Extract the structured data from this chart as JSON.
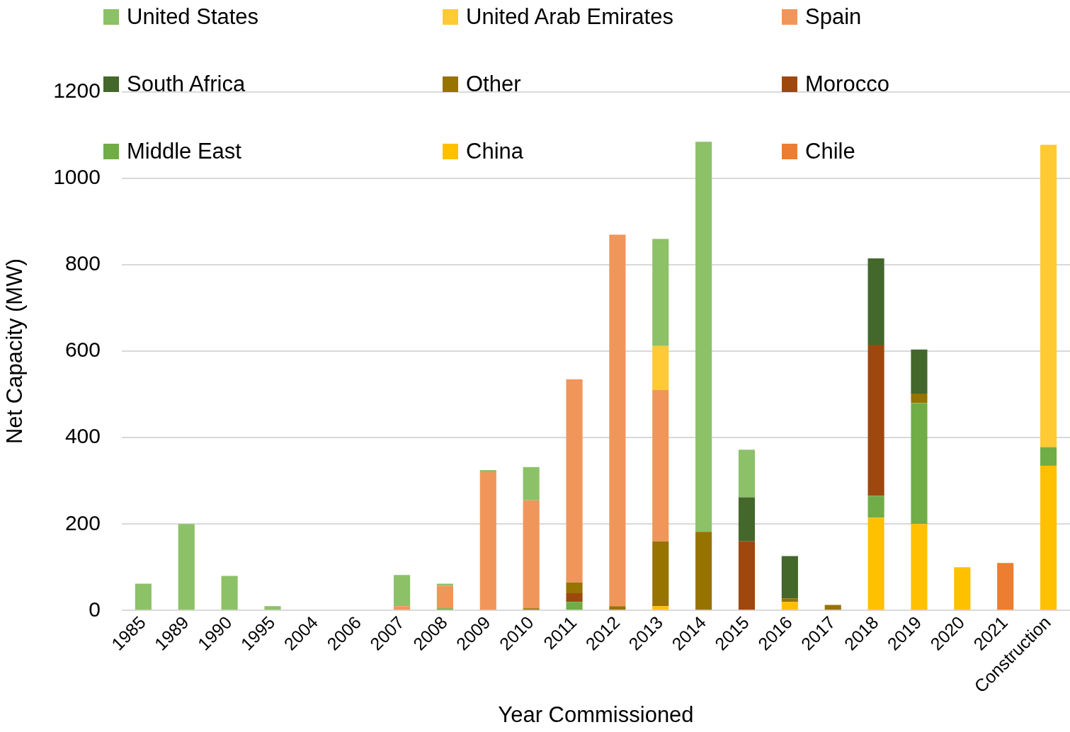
{
  "chart_data": {
    "type": "bar",
    "stacked": true,
    "xlabel": "Year Commissioned",
    "ylabel": "Net Capacity (MW)",
    "categories": [
      "1985",
      "1989",
      "1990",
      "1995",
      "2004",
      "2006",
      "2007",
      "2008",
      "2009",
      "2010",
      "2011",
      "2012",
      "2013",
      "2014",
      "2015",
      "2016",
      "2017",
      "2018",
      "2019",
      "2020",
      "2021",
      "Construction"
    ],
    "series": [
      {
        "name": "Chile",
        "color": "#ed7d31",
        "values": [
          null,
          null,
          null,
          null,
          null,
          null,
          null,
          null,
          null,
          null,
          null,
          null,
          null,
          null,
          null,
          null,
          null,
          null,
          null,
          null,
          110,
          null
        ]
      },
      {
        "name": "China",
        "color": "#ffc000",
        "values": [
          null,
          null,
          null,
          null,
          null,
          null,
          null,
          null,
          null,
          null,
          null,
          null,
          10,
          null,
          null,
          20,
          null,
          215,
          200,
          100,
          null,
          335
        ]
      },
      {
        "name": "Middle East",
        "color": "#70ad47",
        "values": [
          null,
          null,
          null,
          null,
          null,
          null,
          null,
          5,
          null,
          null,
          20,
          null,
          null,
          null,
          null,
          null,
          null,
          50,
          280,
          null,
          null,
          43
        ]
      },
      {
        "name": "Morocco",
        "color": "#9e480e",
        "values": [
          null,
          null,
          null,
          null,
          null,
          null,
          null,
          null,
          null,
          null,
          20,
          null,
          null,
          null,
          160,
          null,
          null,
          350,
          null,
          null,
          null,
          null
        ]
      },
      {
        "name": "Other",
        "color": "#977300",
        "values": [
          null,
          null,
          null,
          null,
          null,
          null,
          null,
          null,
          null,
          5,
          25,
          10,
          150,
          182,
          null,
          8,
          13,
          null,
          22,
          null,
          null,
          null
        ]
      },
      {
        "name": "South Africa",
        "color": "#44672c",
        "values": [
          null,
          null,
          null,
          null,
          null,
          null,
          null,
          null,
          null,
          null,
          null,
          null,
          null,
          null,
          102,
          98,
          null,
          200,
          102,
          null,
          null,
          null
        ]
      },
      {
        "name": "Spain",
        "color": "#f0965a",
        "values": [
          null,
          null,
          null,
          null,
          null,
          null,
          10,
          52,
          320,
          250,
          470,
          860,
          350,
          null,
          null,
          null,
          null,
          null,
          null,
          null,
          null,
          null
        ]
      },
      {
        "name": "United Arab Emirates",
        "color": "#ffca33",
        "values": [
          null,
          null,
          null,
          null,
          null,
          null,
          null,
          null,
          null,
          null,
          null,
          null,
          102,
          null,
          null,
          null,
          null,
          null,
          null,
          null,
          null,
          700
        ]
      },
      {
        "name": "United States",
        "color": "#8cc168",
        "values": [
          62,
          200,
          80,
          10,
          null,
          null,
          72,
          5,
          5,
          77,
          null,
          null,
          248,
          903,
          110,
          null,
          null,
          null,
          null,
          null,
          null,
          null
        ]
      }
    ],
    "ylim": [
      0,
      1200
    ],
    "yticks": [
      0,
      200,
      400,
      600,
      800,
      1000,
      1200
    ],
    "grid": "y",
    "legend": "top"
  }
}
